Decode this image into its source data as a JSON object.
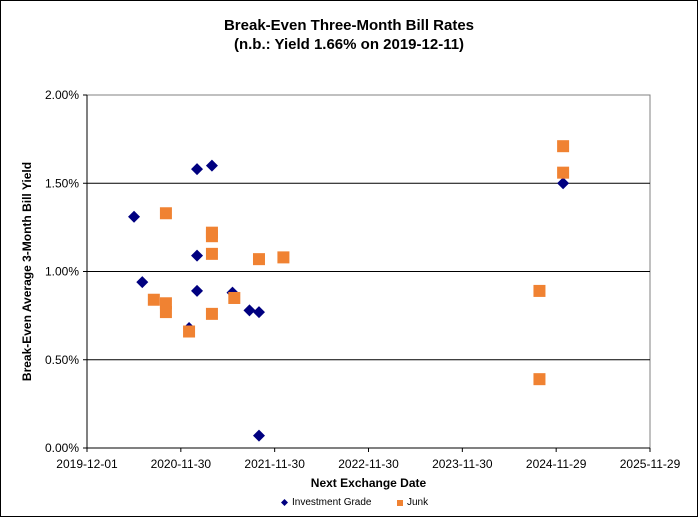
{
  "chart_data": {
    "type": "scatter",
    "title": "Break-Even Three-Month Bill Rates",
    "subtitle": "(n.b.: Yield  1.66% on 2019-12-11)",
    "xlabel": "Next Exchange Date",
    "ylabel": "Break-Even Average 3-Month  Bill Yield",
    "xlim": [
      "2019-12-01",
      "2025-11-29"
    ],
    "ylim": [
      0,
      2.0
    ],
    "x_ticks": [
      "2019-12-01",
      "2020-11-30",
      "2021-11-30",
      "2022-11-30",
      "2023-11-30",
      "2024-11-29",
      "2025-11-29"
    ],
    "y_ticks": [
      "0.00%",
      "0.50%",
      "1.00%",
      "1.50%",
      "2.00%"
    ],
    "y_tick_values": [
      0,
      0.5,
      1.0,
      1.5,
      2.0
    ],
    "grid": "horizontal",
    "legend_position": "bottom",
    "series": [
      {
        "name": "Investment Grade",
        "marker": "diamond",
        "color": "#000080",
        "points": [
          [
            "2020-06-01",
            1.31
          ],
          [
            "2020-07-03",
            0.94
          ],
          [
            "2021-02-01",
            1.58
          ],
          [
            "2021-03-31",
            1.6
          ],
          [
            "2021-02-01",
            1.09
          ],
          [
            "2021-02-01",
            0.89
          ],
          [
            "2021-01-01",
            0.68
          ],
          [
            "2021-06-19",
            0.88
          ],
          [
            "2021-08-24",
            0.78
          ],
          [
            "2021-09-30",
            0.77
          ],
          [
            "2021-09-30",
            0.07
          ],
          [
            "2024-12-26",
            1.5
          ]
        ]
      },
      {
        "name": "Junk",
        "marker": "square",
        "color": "#F08232",
        "points": [
          [
            "2020-10-03",
            1.33
          ],
          [
            "2020-08-17",
            0.84
          ],
          [
            "2020-10-03",
            0.82
          ],
          [
            "2020-10-03",
            0.77
          ],
          [
            "2021-01-01",
            0.66
          ],
          [
            "2021-03-31",
            1.22
          ],
          [
            "2021-03-31",
            1.2
          ],
          [
            "2021-03-31",
            1.1
          ],
          [
            "2021-03-31",
            0.76
          ],
          [
            "2021-06-26",
            0.85
          ],
          [
            "2021-09-30",
            1.07
          ],
          [
            "2022-01-03",
            1.08
          ],
          [
            "2024-09-25",
            0.89
          ],
          [
            "2024-09-25",
            0.39
          ],
          [
            "2024-12-26",
            1.71
          ],
          [
            "2024-12-26",
            1.56
          ]
        ]
      }
    ]
  }
}
